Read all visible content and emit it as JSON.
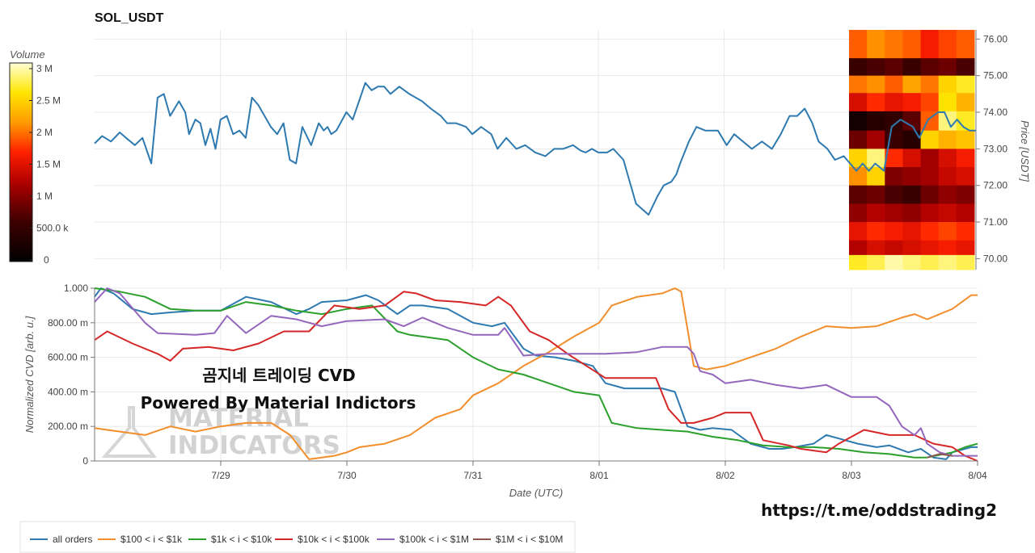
{
  "colors": {
    "all_orders": "#2e7ab0",
    "r100_1k": "#f28e2b",
    "r1k_10k": "#2ca02c",
    "r10k_100k": "#d62728",
    "r100k_1m": "#9467bd",
    "r1m_10m": "#8c564b",
    "grid": "#e8e8e8",
    "heat_low": "#000000",
    "heat_high": "#ffffd6"
  },
  "chart_data": [
    {
      "type": "line",
      "title": "SOL_USDT",
      "ylabel": "Price [USDT]",
      "ylim": [
        69.7,
        76.25
      ],
      "yticks": [
        "70.00",
        "71.00",
        "72.00",
        "73.00",
        "74.00",
        "75.00",
        "76.00"
      ],
      "x_range_days": [
        "2023-07-28 00:00",
        "2023-08-04 00:00"
      ],
      "series": [
        {
          "key": "all_orders",
          "x": [
            0.0,
            0.06,
            0.13,
            0.2,
            0.25,
            0.32,
            0.38,
            0.45,
            0.5,
            0.55,
            0.6,
            0.67,
            0.72,
            0.75,
            0.8,
            0.84,
            0.88,
            0.92,
            0.96,
            1.0,
            1.05,
            1.1,
            1.15,
            1.2,
            1.25,
            1.3,
            1.35,
            1.4,
            1.45,
            1.5,
            1.55,
            1.6,
            1.65,
            1.72,
            1.78,
            1.82,
            1.85,
            1.88,
            1.92,
            2.0,
            2.05,
            2.1,
            2.15,
            2.2,
            2.25,
            2.3,
            2.35,
            2.42,
            2.5,
            2.6,
            2.67,
            2.75,
            2.8,
            2.87,
            2.95,
            3.0,
            3.07,
            3.15,
            3.2,
            3.27,
            3.35,
            3.42,
            3.5,
            3.58,
            3.65,
            3.72,
            3.8,
            3.86,
            3.9,
            3.95,
            4.0,
            4.07,
            4.12,
            4.2,
            4.3,
            4.4,
            4.47,
            4.52,
            4.58,
            4.62,
            4.65,
            4.72,
            4.78,
            4.85,
            4.95,
            5.02,
            5.08,
            5.15,
            5.22,
            5.3,
            5.38,
            5.45,
            5.52,
            5.58,
            5.64,
            5.7,
            5.75,
            5.82,
            5.88,
            5.95,
            6.0,
            6.05,
            6.1,
            6.15,
            6.2,
            6.27,
            6.33,
            6.4,
            6.45,
            6.5,
            6.55,
            6.62,
            6.7,
            6.75,
            6.8,
            6.85,
            6.9,
            6.95,
            7.0
          ],
          "values": [
            73.15,
            73.35,
            73.2,
            73.45,
            73.3,
            73.1,
            73.3,
            72.6,
            74.4,
            74.5,
            73.9,
            74.3,
            74.0,
            73.4,
            73.8,
            73.7,
            73.1,
            73.55,
            73.0,
            73.8,
            73.9,
            73.4,
            73.5,
            73.3,
            74.4,
            74.2,
            73.9,
            73.6,
            73.4,
            73.7,
            72.7,
            72.6,
            73.6,
            73.1,
            73.7,
            73.5,
            73.6,
            73.4,
            73.5,
            74.0,
            73.8,
            74.3,
            74.8,
            74.6,
            74.7,
            74.7,
            74.5,
            74.7,
            74.5,
            74.3,
            74.1,
            73.9,
            73.7,
            73.7,
            73.6,
            73.4,
            73.6,
            73.4,
            73.0,
            73.3,
            73.0,
            73.1,
            72.9,
            72.8,
            73.0,
            73.0,
            73.1,
            72.95,
            72.9,
            73.0,
            72.9,
            72.9,
            73.0,
            72.7,
            71.5,
            71.2,
            71.7,
            72.0,
            72.1,
            72.3,
            72.6,
            73.2,
            73.6,
            73.5,
            73.5,
            73.1,
            73.4,
            73.2,
            73.0,
            73.2,
            73.0,
            73.4,
            73.9,
            73.9,
            74.1,
            73.7,
            73.2,
            73.0,
            72.7,
            72.8,
            72.6,
            72.4,
            72.6,
            72.4,
            72.6,
            72.4,
            73.6,
            73.8,
            73.7,
            73.6,
            73.3,
            73.8,
            74.0,
            74.0,
            73.6,
            73.8,
            73.6,
            73.5,
            73.5
          ]
        }
      ]
    },
    {
      "type": "heatmap",
      "title": "Volume",
      "colorbar_ticks": [
        "0",
        "500.0 k",
        "1 M",
        "1.5 M",
        "2 M",
        "2.5 M",
        "3 M"
      ],
      "vlim": [
        0,
        3200000
      ],
      "price_bins": [
        75.7,
        75.25,
        74.75,
        74.3,
        73.75,
        73.25,
        72.75,
        72.25,
        71.75,
        71.25,
        70.75,
        70.25,
        69.95
      ],
      "time_columns": 7,
      "values": [
        [
          2000000,
          2200000,
          2100000,
          2000000,
          1700000,
          1900000,
          2000000
        ],
        [
          600000,
          700000,
          800000,
          600000,
          800000,
          900000,
          700000
        ],
        [
          2100000,
          2200000,
          2000000,
          2300000,
          2100000,
          2600000,
          2800000
        ],
        [
          1500000,
          1800000,
          1600000,
          1700000,
          1900000,
          2700000,
          2400000
        ],
        [
          200000,
          400000,
          500000,
          800000,
          2000000,
          3000000,
          2800000
        ],
        [
          900000,
          1200000,
          600000,
          400000,
          2600000,
          2400000,
          2500000
        ],
        [
          2600000,
          3000000,
          1800000,
          1500000,
          1200000,
          1500000,
          1700000
        ],
        [
          2200000,
          2600000,
          1000000,
          1100000,
          1200000,
          1400000,
          1500000
        ],
        [
          800000,
          900000,
          700000,
          600000,
          900000,
          1100000,
          1000000
        ],
        [
          1100000,
          1300000,
          1200000,
          1100000,
          1300000,
          1400000,
          1300000
        ],
        [
          1600000,
          1800000,
          1700000,
          1600000,
          1800000,
          1900000,
          1800000
        ],
        [
          1300000,
          1500000,
          1400000,
          1500000,
          1600000,
          1700000,
          1600000
        ],
        [
          2800000,
          2900000,
          3100000,
          3000000,
          2900000,
          3000000,
          2900000
        ]
      ]
    },
    {
      "type": "line",
      "xlabel": "Date (UTC)",
      "ylabel": "Normalized CVD [arb. u.]",
      "ylim": [
        0,
        1.0
      ],
      "yticks": [
        "0",
        "200.00 m",
        "400.00 m",
        "600.00 m",
        "800.00 m",
        "1.000"
      ],
      "categories": [
        "7/29",
        "7/30",
        "7/31",
        "8/01",
        "8/02",
        "8/03",
        "8/04"
      ],
      "category_positions": [
        1,
        2,
        3,
        4,
        5,
        6,
        7
      ],
      "series": [
        {
          "name": "all orders",
          "key": "all_orders",
          "x": [
            0.0,
            0.05,
            0.15,
            0.3,
            0.45,
            0.6,
            0.8,
            1.0,
            1.2,
            1.4,
            1.6,
            1.7,
            1.8,
            2.0,
            2.15,
            2.25,
            2.4,
            2.5,
            2.6,
            2.8,
            3.0,
            3.15,
            3.25,
            3.4,
            3.5,
            3.65,
            3.8,
            3.95,
            4.05,
            4.2,
            4.3,
            4.5,
            4.6,
            4.7,
            4.8,
            4.9,
            5.05,
            5.2,
            5.35,
            5.45,
            5.55,
            5.7,
            5.8,
            5.95,
            6.05,
            6.2,
            6.3,
            6.45,
            6.55,
            6.65,
            6.75,
            6.8,
            6.85,
            6.95,
            7.0
          ],
          "values": [
            0.95,
            1.0,
            0.97,
            0.88,
            0.85,
            0.86,
            0.87,
            0.87,
            0.95,
            0.92,
            0.85,
            0.88,
            0.92,
            0.93,
            0.96,
            0.93,
            0.85,
            0.9,
            0.9,
            0.88,
            0.8,
            0.78,
            0.8,
            0.65,
            0.61,
            0.6,
            0.58,
            0.55,
            0.45,
            0.42,
            0.42,
            0.42,
            0.4,
            0.2,
            0.18,
            0.19,
            0.18,
            0.1,
            0.07,
            0.07,
            0.08,
            0.1,
            0.15,
            0.12,
            0.1,
            0.08,
            0.09,
            0.05,
            0.07,
            0.02,
            0.01,
            0.05,
            0.06,
            0.08,
            0.08
          ]
        },
        {
          "name": "$100 < i < $1k",
          "key": "r100_1k",
          "x": [
            0.0,
            0.2,
            0.4,
            0.6,
            0.8,
            1.0,
            1.2,
            1.4,
            1.55,
            1.7,
            1.8,
            1.9,
            2.0,
            2.1,
            2.3,
            2.5,
            2.7,
            2.9,
            3.0,
            3.2,
            3.4,
            3.6,
            3.8,
            4.0,
            4.1,
            4.3,
            4.5,
            4.6,
            4.65,
            4.75,
            4.85,
            5.0,
            5.2,
            5.4,
            5.6,
            5.8,
            6.0,
            6.2,
            6.4,
            6.5,
            6.6,
            6.8,
            6.95,
            7.0
          ],
          "values": [
            0.19,
            0.17,
            0.15,
            0.2,
            0.17,
            0.2,
            0.22,
            0.22,
            0.15,
            0.01,
            0.02,
            0.03,
            0.05,
            0.08,
            0.1,
            0.15,
            0.25,
            0.3,
            0.38,
            0.45,
            0.55,
            0.63,
            0.72,
            0.8,
            0.9,
            0.95,
            0.97,
            1.0,
            0.98,
            0.55,
            0.53,
            0.55,
            0.6,
            0.65,
            0.72,
            0.78,
            0.77,
            0.78,
            0.83,
            0.85,
            0.82,
            0.88,
            0.96,
            0.96
          ]
        },
        {
          "name": "$1k < i < $10k",
          "key": "r1k_10k",
          "x": [
            0.0,
            0.2,
            0.4,
            0.6,
            0.8,
            1.0,
            1.2,
            1.4,
            1.6,
            1.8,
            2.0,
            2.2,
            2.4,
            2.5,
            2.6,
            2.8,
            3.0,
            3.2,
            3.4,
            3.6,
            3.8,
            4.0,
            4.1,
            4.3,
            4.5,
            4.7,
            4.9,
            5.1,
            5.3,
            5.5,
            5.7,
            5.9,
            6.1,
            6.3,
            6.5,
            6.6,
            6.8,
            6.9,
            7.0
          ],
          "values": [
            1.0,
            0.98,
            0.95,
            0.88,
            0.87,
            0.87,
            0.92,
            0.9,
            0.87,
            0.85,
            0.88,
            0.9,
            0.75,
            0.73,
            0.72,
            0.7,
            0.6,
            0.53,
            0.5,
            0.45,
            0.4,
            0.38,
            0.22,
            0.19,
            0.18,
            0.17,
            0.14,
            0.12,
            0.09,
            0.08,
            0.08,
            0.07,
            0.05,
            0.04,
            0.02,
            0.02,
            0.05,
            0.08,
            0.1
          ]
        },
        {
          "name": "$10k < i < $100k",
          "key": "r10k_100k",
          "x": [
            0.0,
            0.1,
            0.3,
            0.5,
            0.6,
            0.7,
            0.9,
            1.1,
            1.3,
            1.5,
            1.7,
            1.9,
            2.1,
            2.3,
            2.45,
            2.55,
            2.7,
            2.9,
            3.1,
            3.2,
            3.3,
            3.45,
            3.6,
            3.75,
            3.9,
            4.05,
            4.25,
            4.45,
            4.55,
            4.65,
            4.75,
            4.9,
            5.0,
            5.2,
            5.3,
            5.5,
            5.6,
            5.8,
            5.9,
            6.1,
            6.3,
            6.5,
            6.65,
            6.8,
            6.9,
            7.0
          ],
          "values": [
            0.7,
            0.75,
            0.68,
            0.62,
            0.58,
            0.65,
            0.66,
            0.64,
            0.68,
            0.75,
            0.75,
            0.9,
            0.88,
            0.9,
            0.98,
            0.97,
            0.93,
            0.92,
            0.9,
            0.95,
            0.9,
            0.75,
            0.7,
            0.62,
            0.55,
            0.48,
            0.48,
            0.48,
            0.3,
            0.22,
            0.22,
            0.25,
            0.28,
            0.28,
            0.12,
            0.09,
            0.07,
            0.05,
            0.1,
            0.18,
            0.15,
            0.15,
            0.1,
            0.08,
            0.03,
            0.0
          ]
        },
        {
          "name": "$100k < i < $1M",
          "key": "r100k_1m",
          "x": [
            0.0,
            0.1,
            0.2,
            0.4,
            0.5,
            0.8,
            0.95,
            1.05,
            1.2,
            1.4,
            1.6,
            1.8,
            2.0,
            2.3,
            2.45,
            2.6,
            2.8,
            3.0,
            3.2,
            3.25,
            3.4,
            3.6,
            4.0,
            4.05,
            4.3,
            4.5,
            4.7,
            4.75,
            4.8,
            4.9,
            5.0,
            5.2,
            5.4,
            5.6,
            5.8,
            6.0,
            6.2,
            6.3,
            6.4,
            6.5,
            6.55,
            6.6,
            6.7,
            6.8,
            7.0
          ],
          "values": [
            0.92,
            1.0,
            0.97,
            0.8,
            0.74,
            0.73,
            0.74,
            0.84,
            0.74,
            0.84,
            0.82,
            0.78,
            0.81,
            0.82,
            0.78,
            0.83,
            0.77,
            0.73,
            0.73,
            0.77,
            0.61,
            0.62,
            0.62,
            0.62,
            0.63,
            0.66,
            0.66,
            0.62,
            0.52,
            0.5,
            0.45,
            0.47,
            0.44,
            0.42,
            0.44,
            0.37,
            0.37,
            0.32,
            0.2,
            0.15,
            0.19,
            0.1,
            0.05,
            0.03,
            0.03
          ]
        },
        {
          "name": "$1M < i < $10M",
          "key": "r1m_10m",
          "x": [
            6.6,
            6.7,
            6.8
          ],
          "values": [
            0.02,
            0.04,
            0.03
          ]
        }
      ]
    }
  ],
  "overlay": {
    "line1": "곰지네 트레이딩 CVD",
    "line2": "Powered By Material Indictors",
    "url": "https://t.me/oddstrading2"
  },
  "watermark": {
    "line1": "MATERIAL",
    "line2": "INDICATORS"
  },
  "legend": {
    "items": [
      {
        "label": "all orders",
        "key": "all_orders"
      },
      {
        "label": "$100 < i < $1k",
        "key": "r100_1k"
      },
      {
        "label": "$1k < i < $10k",
        "key": "r1k_10k"
      },
      {
        "label": "$10k < i < $100k",
        "key": "r10k_100k"
      },
      {
        "label": "$100k < i < $1M",
        "key": "r100k_1m"
      },
      {
        "label": "$1M < i < $10M",
        "key": "r1m_10m"
      }
    ]
  }
}
